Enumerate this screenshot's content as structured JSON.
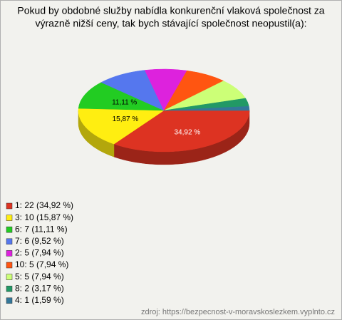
{
  "chart_data": {
    "type": "pie3d",
    "title": [
      "Pokud by obdobné služby nabídla konkurenční vlaková společnost za",
      "výrazně nižší ceny, tak bych stávající společnost neopustil(a):"
    ],
    "categories": [
      "1: 22 (34,92 %)",
      "3: 10 (15,87 %)",
      "6: 7 (11,11 %)",
      "7: 6 (9,52 %)",
      "2: 5 (7,94 %)",
      "10: 5 (7,94 %)",
      "5: 5 (7,94 %)",
      "8: 2 (3,17 %)",
      "4: 1 (1,59 %)"
    ],
    "values": [
      34.92,
      15.87,
      11.11,
      9.52,
      7.94,
      7.94,
      7.94,
      3.17,
      1.59
    ],
    "value_labels": [
      "34,92 %",
      "15,87 %",
      "11,11 %",
      null,
      null,
      null,
      null,
      null,
      null
    ],
    "value_label_colors": [
      "#ffffff",
      "#000000",
      "#000000",
      null,
      null,
      null,
      null,
      null,
      null
    ],
    "colors": [
      "#dd3322",
      "#ffee11",
      "#22cc22",
      "#5577ee",
      "#dd22dd",
      "#ff5511",
      "#ccff77",
      "#229966",
      "#337799"
    ],
    "source": "zdroj: https://bezpecnost-v-moravskoslezkem.vyplnto.cz"
  }
}
